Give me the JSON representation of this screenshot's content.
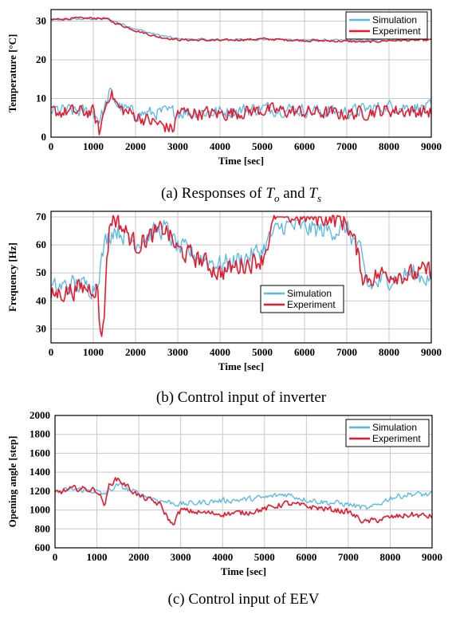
{
  "chart_data": [
    {
      "type": "line",
      "caption": "(a) Responses of",
      "caption_sym1": "T",
      "caption_sub1": "o",
      "caption_and": "and",
      "caption_sym2": "T",
      "caption_sub2": "s",
      "xlabel": "Time  [sec]",
      "ylabel": "Temperature [°C]",
      "xlim": [
        0,
        9000
      ],
      "ylim": [
        0,
        33
      ],
      "xticks": [
        "0",
        "1000",
        "2000",
        "3000",
        "4000",
        "5000",
        "6000",
        "7000",
        "8000",
        "9000"
      ],
      "yticks": [
        "0",
        "10",
        "20",
        "30"
      ],
      "ytick_values": [
        0,
        10,
        20,
        30
      ],
      "grid": true,
      "legend_position": "top-right",
      "series": [
        {
          "name": "Simulation",
          "color": "#55b8e8",
          "group": "To",
          "x": [
            0,
            500,
            1000,
            1300,
            1500,
            2000,
            2500,
            3000,
            4000,
            5000,
            6000,
            7000,
            7500,
            8000,
            9000
          ],
          "y": [
            30.2,
            30.5,
            30.6,
            30.8,
            30.0,
            28.0,
            26.5,
            25.4,
            25.2,
            25.3,
            25.2,
            25.0,
            25.0,
            25.2,
            25.3
          ]
        },
        {
          "name": "Experiment",
          "color": "#e8192c",
          "group": "To",
          "x": [
            0,
            500,
            1000,
            1300,
            1500,
            2000,
            2500,
            3000,
            4000,
            5000,
            6000,
            7000,
            7500,
            8000,
            9000
          ],
          "y": [
            30.4,
            30.7,
            30.8,
            30.6,
            29.6,
            27.6,
            26.0,
            25.2,
            25.0,
            25.4,
            25.0,
            24.8,
            24.6,
            25.0,
            25.1
          ]
        },
        {
          "name": "Simulation",
          "color": "#55b8e8",
          "group": "Ts",
          "x": [
            0,
            1000,
            1150,
            1250,
            1400,
            1600,
            2000,
            3000,
            4000,
            5000,
            6000,
            7000,
            8000,
            9000
          ],
          "y": [
            7,
            6.5,
            4.5,
            7,
            11.5,
            8,
            6,
            6.5,
            6.5,
            7.5,
            7,
            6.5,
            8,
            7.5
          ]
        },
        {
          "name": "Experiment",
          "color": "#e8192c",
          "group": "Ts",
          "x": [
            0,
            1000,
            1150,
            1250,
            1400,
            1600,
            2000,
            2900,
            3000,
            4000,
            5000,
            6000,
            7000,
            8000,
            9000
          ],
          "y": [
            6.5,
            6.5,
            1.0,
            6.5,
            12,
            7.5,
            5.5,
            2.0,
            6.5,
            6.0,
            7.0,
            6.5,
            6.0,
            7.0,
            6.5
          ]
        }
      ]
    },
    {
      "type": "line",
      "caption": "(b)  Control  input  of  inverter",
      "xlabel": "Time  [sec]",
      "ylabel": "Frequency [Hz]",
      "xlim": [
        0,
        9000
      ],
      "ylim": [
        25,
        72
      ],
      "xticks": [
        "0",
        "1000",
        "2000",
        "3000",
        "4000",
        "5000",
        "6000",
        "7000",
        "8000",
        "9000"
      ],
      "yticks": [
        "30",
        "40",
        "50",
        "60",
        "70"
      ],
      "ytick_values": [
        30,
        40,
        50,
        60,
        70
      ],
      "grid": true,
      "legend_position": "bottom-right",
      "series": [
        {
          "name": "Simulation",
          "color": "#55b8e8",
          "x": [
            0,
            500,
            1000,
            1100,
            1200,
            1300,
            1500,
            2000,
            2500,
            2700,
            3000,
            3500,
            4000,
            4500,
            5000,
            5200,
            5500,
            6000,
            6500,
            7000,
            7300,
            7500,
            8000,
            8500,
            9000
          ],
          "y": [
            44,
            46,
            45,
            48,
            55,
            62,
            66,
            61,
            65,
            66,
            59,
            56,
            53,
            55,
            58,
            63,
            67,
            66,
            65,
            66,
            58,
            45,
            48,
            50,
            48
          ]
        },
        {
          "name": "Experiment",
          "color": "#e8192c",
          "x": [
            0,
            500,
            1000,
            1100,
            1150,
            1250,
            1300,
            1400,
            1500,
            2000,
            2500,
            2700,
            3000,
            3500,
            4000,
            4500,
            5000,
            5200,
            5300,
            5500,
            6000,
            6500,
            7000,
            7200,
            7400,
            8000,
            8500,
            9000
          ],
          "y": [
            42,
            44,
            45,
            45,
            30,
            30,
            52,
            68,
            70,
            60,
            64,
            66,
            58,
            55,
            50,
            53,
            55,
            64,
            70,
            70,
            70,
            70,
            68,
            60,
            48,
            50,
            49,
            51
          ]
        }
      ]
    },
    {
      "type": "line",
      "caption": "(c)  Control  input  of  EEV",
      "xlabel": "Time  [sec]",
      "ylabel": "Opening angle [step]",
      "xlim": [
        0,
        9000
      ],
      "ylim": [
        600,
        2000
      ],
      "xticks": [
        "0",
        "1000",
        "2000",
        "3000",
        "4000",
        "5000",
        "6000",
        "7000",
        "8000",
        "9000"
      ],
      "yticks": [
        "600",
        "800",
        "1000",
        "1200",
        "1400",
        "1600",
        "1800",
        "2000"
      ],
      "ytick_values": [
        600,
        800,
        1000,
        1200,
        1400,
        1600,
        1800,
        2000
      ],
      "grid": true,
      "legend_position": "top-right",
      "series": [
        {
          "name": "Simulation",
          "color": "#55b8e8",
          "x": [
            0,
            500,
            1000,
            1100,
            1200,
            1500,
            2000,
            2500,
            3000,
            3500,
            4000,
            4500,
            5000,
            5500,
            6000,
            6500,
            7000,
            7500,
            8000,
            8500,
            9000
          ],
          "y": [
            1190,
            1220,
            1200,
            1160,
            1180,
            1260,
            1170,
            1100,
            1060,
            1080,
            1100,
            1110,
            1130,
            1170,
            1110,
            1080,
            1060,
            1010,
            1130,
            1170,
            1160
          ]
        },
        {
          "name": "Experiment",
          "color": "#e8192c",
          "x": [
            0,
            500,
            1000,
            1100,
            1200,
            1300,
            1500,
            2000,
            2500,
            2800,
            3000,
            3500,
            4000,
            4500,
            5000,
            5500,
            6000,
            6500,
            7000,
            7400,
            7500,
            8000,
            8500,
            9000
          ],
          "y": [
            1180,
            1230,
            1210,
            1130,
            1050,
            1280,
            1330,
            1150,
            1060,
            840,
            1000,
            970,
            960,
            970,
            1010,
            1070,
            1040,
            1010,
            980,
            870,
            880,
            920,
            950,
            930
          ]
        }
      ]
    }
  ]
}
